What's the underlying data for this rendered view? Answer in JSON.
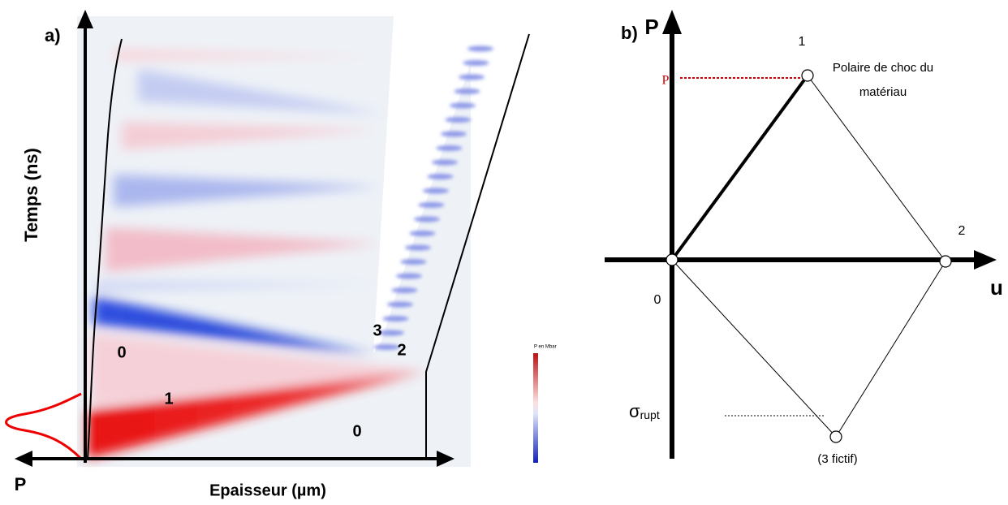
{
  "panel_a": {
    "label": "a)",
    "y_axis_label": "Temps (ns)",
    "x_axis_label": "Epaisseur (µm)",
    "pressure_label": "P",
    "regions": [
      "0",
      "1",
      "0",
      "3",
      "2"
    ],
    "legend_title": "P en Mbar"
  },
  "panel_b": {
    "label": "b)",
    "y_axis_label": "P",
    "x_axis_label": "u",
    "pressure_level": "P",
    "points": [
      "0",
      "1",
      "2",
      "(3 fictif)"
    ],
    "polar_label": [
      "Polaire de choc du",
      "matériau"
    ],
    "sigma_symbol": "σ",
    "sigma_subscript": "rupt"
  }
}
